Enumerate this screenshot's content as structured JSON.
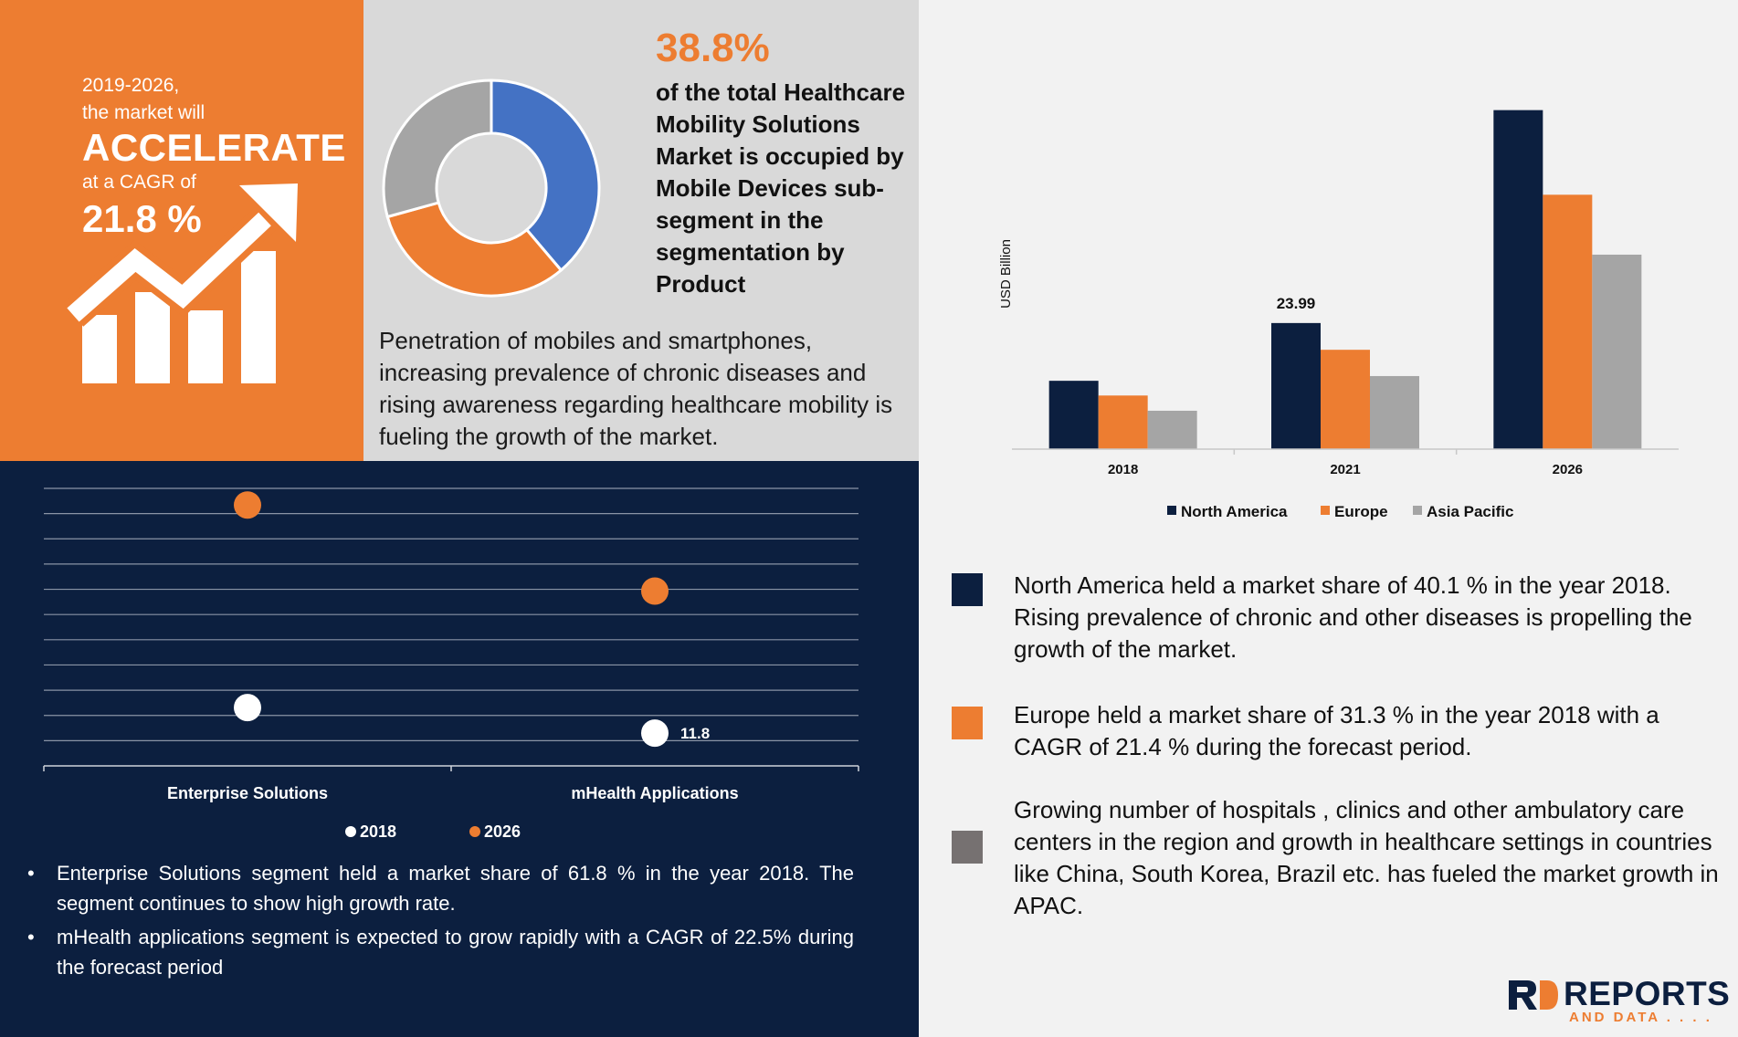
{
  "cagr_panel": {
    "line1": "2019-2026,",
    "line2": "the market will",
    "headline": "ACCELERATE",
    "line3": "at a CAGR of",
    "value": "21.8 %",
    "icon": "growth-chart-arrow-icon"
  },
  "segment_share": {
    "percent": "38.8%",
    "description": "of the total Healthcare Mobility Solutions Market is occupied by Mobile Devices sub-segment in the segmentation by  Product",
    "driver_text": "Penetration of mobiles and smartphones, increasing prevalence of chronic diseases and rising awareness regarding healthcare mobility is fueling the growth of the market."
  },
  "notes": [
    {
      "color": "#0c1f3f",
      "text": "North America held a market share of 40.1 % in the year 2018. Rising prevalence of chronic and other diseases is propelling the growth of the market."
    },
    {
      "color": "#ed7d31",
      "text": "Europe held a market share of 31.3 % in the year 2018 with a CAGR of 21.4 % during the forecast period."
    },
    {
      "color": "#767171",
      "text": "Growing number of hospitals , clinics and other ambulatory care centers in the region and growth in healthcare settings in countries like China, South Korea, Brazil etc. has fueled the market growth in APAC."
    }
  ],
  "application_bullets": [
    "Enterprise Solutions segment held a market share of 61.8 % in the year 2018. The segment continues to show high growth rate.",
    "mHealth applications segment is expected to grow rapidly with a CAGR of 22.5% during the forecast period"
  ],
  "logo": {
    "word": "REPORTS",
    "sub": "AND DATA . . . ."
  },
  "chart_data": [
    {
      "type": "pie",
      "variant": "donut",
      "values": [
        38.8,
        31.9,
        29.3
      ],
      "colors": [
        "#4472c4",
        "#ed7d31",
        "#a5a5a5"
      ]
    },
    {
      "type": "scatter",
      "variant": "dot-plot",
      "categories": [
        "Enterprise Solutions",
        "mHealth Applications"
      ],
      "series": [
        {
          "name": "2018",
          "values": [
            21,
            11.8
          ],
          "color": "#ffffff"
        },
        {
          "name": "2026",
          "values": [
            94,
            63
          ],
          "color": "#ed7d31"
        }
      ],
      "data_labels": [
        {
          "series": 0,
          "index": 1,
          "text": "11.8"
        }
      ],
      "ylim": [
        0,
        100
      ],
      "grid": true,
      "legend": "bottom",
      "gridline_count": 11
    },
    {
      "type": "bar",
      "categories": [
        "2018",
        "2021",
        "2026"
      ],
      "series": [
        {
          "name": "North America",
          "values": [
            13,
            23.99,
            64.5
          ],
          "color": "#0c1f3f"
        },
        {
          "name": "Europe",
          "values": [
            10.2,
            18.9,
            48.4
          ],
          "color": "#ed7d31"
        },
        {
          "name": "Asia Pacific",
          "values": [
            7.3,
            13.9,
            37.0
          ],
          "color": "#a5a5a5"
        }
      ],
      "data_labels": [
        {
          "series": 0,
          "index": 1,
          "text": "23.99"
        }
      ],
      "ylabel": "USD Billion",
      "ylim": [
        0,
        66
      ],
      "grid": false,
      "legend": "bottom"
    }
  ]
}
